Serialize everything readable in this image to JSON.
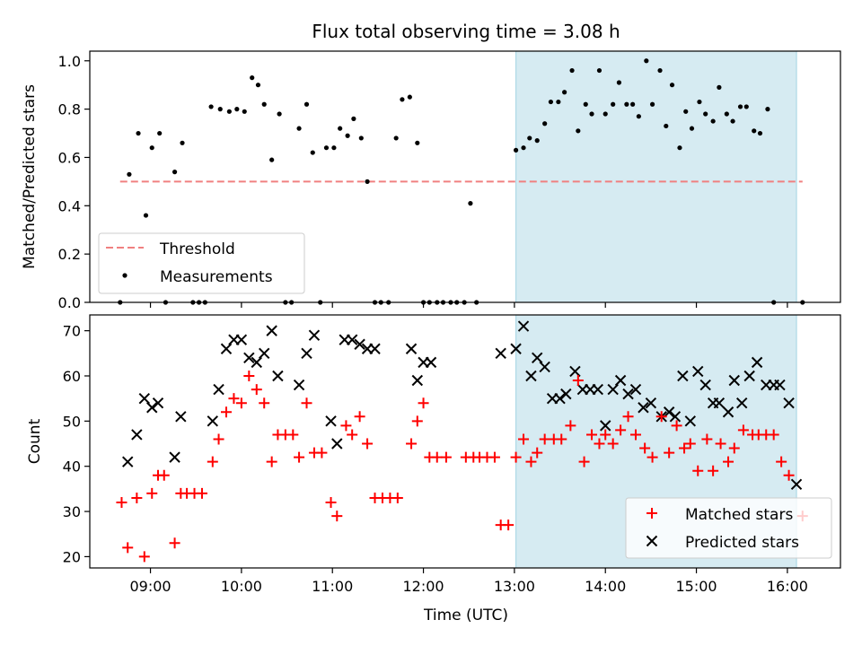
{
  "title": "Flux total observing time = 3.08 h",
  "colors": {
    "threshold": "#f08080",
    "measurement": "#000000",
    "matched": "#ff0000",
    "predicted": "#000000",
    "shade": "#add8e6"
  },
  "chart_data": [
    {
      "type": "scatter",
      "ylabel": "Matched/Predicted stars",
      "xlim": [
        "08:20",
        "16:35"
      ],
      "ylim": [
        0,
        1.04
      ],
      "yticks": [
        "0.0",
        "0.2",
        "0.4",
        "0.6",
        "0.8",
        "1.0"
      ],
      "shaded_span": [
        "13:01",
        "16:06"
      ],
      "threshold": {
        "name": "Threshold",
        "value": 0.5,
        "x_range": [
          "08:40",
          "16:10"
        ],
        "style": "dashed"
      },
      "legend": {
        "placement": "lower-left",
        "entries": [
          "Threshold",
          "Measurements"
        ]
      },
      "series": [
        {
          "name": "Measurements",
          "marker": "dot",
          "points": [
            [
              "08:40",
              0.0
            ],
            [
              "08:46",
              0.53
            ],
            [
              "08:52",
              0.7
            ],
            [
              "08:57",
              0.36
            ],
            [
              "09:01",
              0.64
            ],
            [
              "09:06",
              0.7
            ],
            [
              "09:10",
              0.0
            ],
            [
              "09:16",
              0.54
            ],
            [
              "09:21",
              0.66
            ],
            [
              "09:28",
              0.0
            ],
            [
              "09:32",
              0.0
            ],
            [
              "09:36",
              0.0
            ],
            [
              "09:40",
              0.81
            ],
            [
              "09:46",
              0.8
            ],
            [
              "09:52",
              0.79
            ],
            [
              "09:57",
              0.8
            ],
            [
              "10:02",
              0.79
            ],
            [
              "10:07",
              0.93
            ],
            [
              "10:11",
              0.9
            ],
            [
              "10:15",
              0.82
            ],
            [
              "10:20",
              0.59
            ],
            [
              "10:25",
              0.78
            ],
            [
              "10:29",
              0.0
            ],
            [
              "10:33",
              0.0
            ],
            [
              "10:38",
              0.72
            ],
            [
              "10:43",
              0.82
            ],
            [
              "10:47",
              0.62
            ],
            [
              "10:52",
              0.0
            ],
            [
              "10:56",
              0.64
            ],
            [
              "11:01",
              0.64
            ],
            [
              "11:05",
              0.72
            ],
            [
              "11:10",
              0.69
            ],
            [
              "11:14",
              0.76
            ],
            [
              "11:19",
              0.68
            ],
            [
              "11:23",
              0.5
            ],
            [
              "11:28",
              0.0
            ],
            [
              "11:32",
              0.0
            ],
            [
              "11:37",
              0.0
            ],
            [
              "11:42",
              0.68
            ],
            [
              "11:46",
              0.84
            ],
            [
              "11:51",
              0.85
            ],
            [
              "11:56",
              0.66
            ],
            [
              "12:00",
              0.0
            ],
            [
              "12:04",
              0.0
            ],
            [
              "12:09",
              0.0
            ],
            [
              "12:13",
              0.0
            ],
            [
              "12:18",
              0.0
            ],
            [
              "12:22",
              0.0
            ],
            [
              "12:27",
              0.0
            ],
            [
              "12:31",
              0.41
            ],
            [
              "12:35",
              0.0
            ],
            [
              "13:01",
              0.63
            ],
            [
              "13:06",
              0.64
            ],
            [
              "13:10",
              0.68
            ],
            [
              "13:15",
              0.67
            ],
            [
              "13:20",
              0.74
            ],
            [
              "13:24",
              0.83
            ],
            [
              "13:29",
              0.83
            ],
            [
              "13:33",
              0.87
            ],
            [
              "13:38",
              0.96
            ],
            [
              "13:42",
              0.71
            ],
            [
              "13:47",
              0.82
            ],
            [
              "13:51",
              0.78
            ],
            [
              "13:56",
              0.96
            ],
            [
              "14:00",
              0.78
            ],
            [
              "14:05",
              0.82
            ],
            [
              "14:09",
              0.91
            ],
            [
              "14:14",
              0.82
            ],
            [
              "14:18",
              0.82
            ],
            [
              "14:22",
              0.77
            ],
            [
              "14:27",
              1.0
            ],
            [
              "14:31",
              0.82
            ],
            [
              "14:36",
              0.96
            ],
            [
              "14:40",
              0.73
            ],
            [
              "14:44",
              0.9
            ],
            [
              "14:49",
              0.64
            ],
            [
              "14:53",
              0.79
            ],
            [
              "14:57",
              0.72
            ],
            [
              "15:02",
              0.83
            ],
            [
              "15:06",
              0.78
            ],
            [
              "15:11",
              0.75
            ],
            [
              "15:15",
              0.89
            ],
            [
              "15:20",
              0.78
            ],
            [
              "15:24",
              0.75
            ],
            [
              "15:29",
              0.81
            ],
            [
              "15:33",
              0.81
            ],
            [
              "15:38",
              0.71
            ],
            [
              "15:42",
              0.7
            ],
            [
              "15:47",
              0.8
            ],
            [
              "15:51",
              0.0
            ],
            [
              "16:10",
              0.0
            ]
          ]
        }
      ]
    },
    {
      "type": "scatter",
      "xlabel": "Time (UTC)",
      "ylabel": "Count",
      "xlim": [
        "08:20",
        "16:35"
      ],
      "ylim": [
        17.5,
        73.5
      ],
      "xticks": [
        "09:00",
        "10:00",
        "11:00",
        "12:00",
        "13:00",
        "14:00",
        "15:00",
        "16:00"
      ],
      "yticks": [
        "20",
        "30",
        "40",
        "50",
        "60",
        "70"
      ],
      "shaded_span": [
        "13:01",
        "16:06"
      ],
      "legend": {
        "placement": "lower-right",
        "entries": [
          "Matched stars",
          "Predicted stars"
        ]
      },
      "series": [
        {
          "name": "Matched stars",
          "marker": "plus",
          "points": [
            [
              "08:41",
              32
            ],
            [
              "08:45",
              22
            ],
            [
              "08:51",
              33
            ],
            [
              "08:56",
              20
            ],
            [
              "09:01",
              34
            ],
            [
              "09:05",
              38
            ],
            [
              "09:09",
              38
            ],
            [
              "09:16",
              23
            ],
            [
              "09:20",
              34
            ],
            [
              "09:24",
              34
            ],
            [
              "09:29",
              34
            ],
            [
              "09:34",
              34
            ],
            [
              "09:41",
              41
            ],
            [
              "09:45",
              46
            ],
            [
              "09:50",
              52
            ],
            [
              "09:55",
              55
            ],
            [
              "10:00",
              54
            ],
            [
              "10:05",
              60
            ],
            [
              "10:10",
              57
            ],
            [
              "10:15",
              54
            ],
            [
              "10:20",
              41
            ],
            [
              "10:24",
              47
            ],
            [
              "10:29",
              47
            ],
            [
              "10:34",
              47
            ],
            [
              "10:38",
              42
            ],
            [
              "10:43",
              54
            ],
            [
              "10:48",
              43
            ],
            [
              "10:53",
              43
            ],
            [
              "10:59",
              32
            ],
            [
              "11:03",
              29
            ],
            [
              "11:09",
              49
            ],
            [
              "11:13",
              47
            ],
            [
              "11:18",
              51
            ],
            [
              "11:23",
              45
            ],
            [
              "11:28",
              33
            ],
            [
              "11:33",
              33
            ],
            [
              "11:38",
              33
            ],
            [
              "11:43",
              33
            ],
            [
              "11:52",
              45
            ],
            [
              "11:56",
              50
            ],
            [
              "12:00",
              54
            ],
            [
              "12:04",
              42
            ],
            [
              "12:09",
              42
            ],
            [
              "12:15",
              42
            ],
            [
              "12:28",
              42
            ],
            [
              "12:33",
              42
            ],
            [
              "12:37",
              42
            ],
            [
              "12:42",
              42
            ],
            [
              "12:47",
              42
            ],
            [
              "12:51",
              27
            ],
            [
              "12:56",
              27
            ],
            [
              "13:01",
              42
            ],
            [
              "13:06",
              46
            ],
            [
              "13:11",
              41
            ],
            [
              "13:15",
              43
            ],
            [
              "13:20",
              46
            ],
            [
              "13:26",
              46
            ],
            [
              "13:31",
              46
            ],
            [
              "13:37",
              49
            ],
            [
              "13:42",
              59
            ],
            [
              "13:46",
              41
            ],
            [
              "13:51",
              47
            ],
            [
              "13:56",
              45
            ],
            [
              "14:00",
              47
            ],
            [
              "14:05",
              45
            ],
            [
              "14:10",
              48
            ],
            [
              "14:15",
              51
            ],
            [
              "14:20",
              47
            ],
            [
              "14:26",
              44
            ],
            [
              "14:31",
              42
            ],
            [
              "14:37",
              51
            ],
            [
              "14:42",
              43
            ],
            [
              "14:47",
              49
            ],
            [
              "14:52",
              44
            ],
            [
              "14:56",
              45
            ],
            [
              "15:01",
              39
            ],
            [
              "15:07",
              46
            ],
            [
              "15:11",
              39
            ],
            [
              "15:16",
              45
            ],
            [
              "15:21",
              41
            ],
            [
              "15:25",
              44
            ],
            [
              "15:31",
              48
            ],
            [
              "15:37",
              47
            ],
            [
              "15:41",
              47
            ],
            [
              "15:46",
              47
            ],
            [
              "15:51",
              47
            ],
            [
              "15:56",
              41
            ],
            [
              "16:01",
              38
            ],
            [
              "16:10",
              29
            ]
          ]
        },
        {
          "name": "Predicted stars",
          "marker": "x",
          "points": [
            [
              "08:45",
              41
            ],
            [
              "08:51",
              47
            ],
            [
              "08:56",
              55
            ],
            [
              "09:01",
              53
            ],
            [
              "09:05",
              54
            ],
            [
              "09:16",
              42
            ],
            [
              "09:20",
              51
            ],
            [
              "09:41",
              50
            ],
            [
              "09:45",
              57
            ],
            [
              "09:50",
              66
            ],
            [
              "09:55",
              68
            ],
            [
              "10:00",
              68
            ],
            [
              "10:05",
              64
            ],
            [
              "10:10",
              63
            ],
            [
              "10:15",
              65
            ],
            [
              "10:20",
              70
            ],
            [
              "10:24",
              60
            ],
            [
              "10:38",
              58
            ],
            [
              "10:43",
              65
            ],
            [
              "10:48",
              69
            ],
            [
              "10:59",
              50
            ],
            [
              "11:03",
              45
            ],
            [
              "11:08",
              68
            ],
            [
              "11:13",
              68
            ],
            [
              "11:18",
              67
            ],
            [
              "11:23",
              66
            ],
            [
              "11:28",
              66
            ],
            [
              "11:52",
              66
            ],
            [
              "11:56",
              59
            ],
            [
              "12:00",
              63
            ],
            [
              "12:05",
              63
            ],
            [
              "12:51",
              65
            ],
            [
              "13:01",
              66
            ],
            [
              "13:06",
              71
            ],
            [
              "13:11",
              60
            ],
            [
              "13:15",
              64
            ],
            [
              "13:20",
              62
            ],
            [
              "13:25",
              55
            ],
            [
              "13:30",
              55
            ],
            [
              "13:34",
              56
            ],
            [
              "13:40",
              61
            ],
            [
              "13:45",
              57
            ],
            [
              "13:50",
              57
            ],
            [
              "13:55",
              57
            ],
            [
              "14:00",
              49
            ],
            [
              "14:05",
              57
            ],
            [
              "14:10",
              59
            ],
            [
              "14:15",
              56
            ],
            [
              "14:20",
              57
            ],
            [
              "14:25",
              53
            ],
            [
              "14:30",
              54
            ],
            [
              "14:37",
              51
            ],
            [
              "14:42",
              52
            ],
            [
              "14:46",
              51
            ],
            [
              "14:51",
              60
            ],
            [
              "14:56",
              50
            ],
            [
              "15:01",
              61
            ],
            [
              "15:06",
              58
            ],
            [
              "15:11",
              54
            ],
            [
              "15:15",
              54
            ],
            [
              "15:21",
              52
            ],
            [
              "15:25",
              59
            ],
            [
              "15:30",
              54
            ],
            [
              "15:35",
              60
            ],
            [
              "15:40",
              63
            ],
            [
              "15:46",
              58
            ],
            [
              "15:51",
              58
            ],
            [
              "15:55",
              58
            ],
            [
              "16:01",
              54
            ],
            [
              "16:06",
              36
            ]
          ]
        }
      ]
    }
  ]
}
